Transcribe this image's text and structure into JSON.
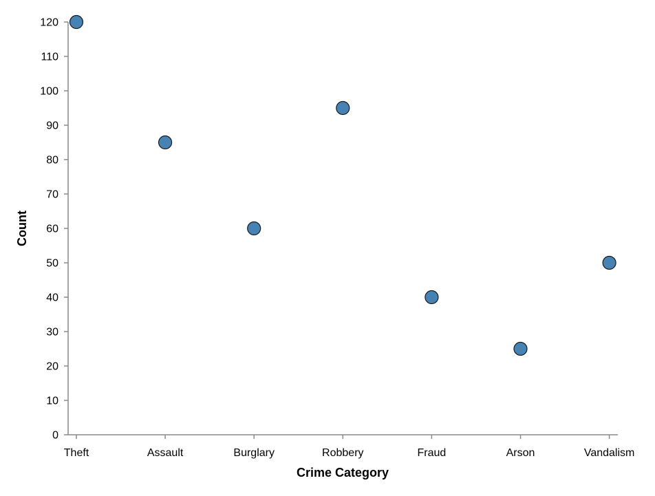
{
  "chart_data": {
    "type": "scatter",
    "title": "",
    "xlabel": "Crime Category",
    "ylabel": "Count",
    "categories": [
      "Theft",
      "Assault",
      "Burglary",
      "Robbery",
      "Fraud",
      "Arson",
      "Vandalism"
    ],
    "values": [
      120,
      85,
      60,
      95,
      40,
      25,
      50
    ],
    "ylim": [
      0,
      120
    ],
    "yticks": [
      0,
      10,
      20,
      30,
      40,
      50,
      60,
      70,
      80,
      90,
      100,
      110,
      120
    ],
    "grid": false,
    "point_color": "#4682b4",
    "point_stroke": "#1a1a1a",
    "axis_color": "#888888"
  }
}
